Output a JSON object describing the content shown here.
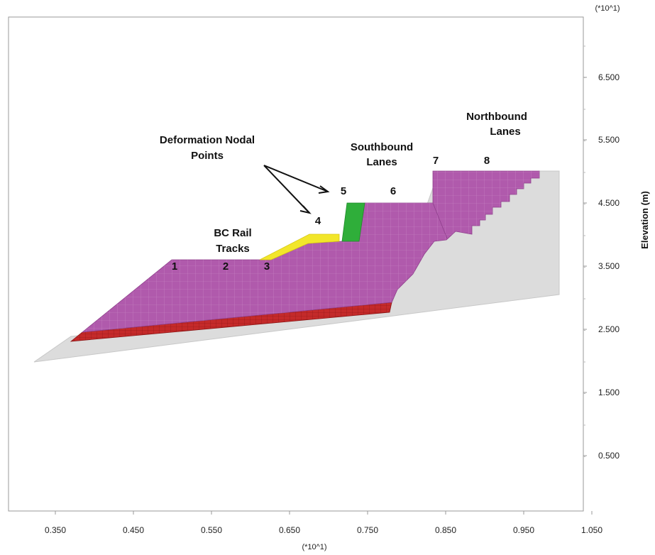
{
  "axes": {
    "x_ticks": [
      "0.350",
      "0.450",
      "0.550",
      "0.650",
      "0.750",
      "0.850",
      "0.950",
      "1.050"
    ],
    "y_ticks": [
      "6.500",
      "5.500",
      "4.500",
      "3.500",
      "2.500",
      "1.500",
      "0.500"
    ],
    "x_multiplier": "(*10^1)",
    "y_multiplier": "(*10^1)",
    "y_label": "Elevation (m)"
  },
  "annotations": {
    "deformation_line1": "Deformation Nodal",
    "deformation_line2": "Points",
    "bc_rail_line1": "BC Rail",
    "bc_rail_line2": "Tracks",
    "southbound_line1": "Southbound",
    "southbound_line2": "Lanes",
    "northbound_line1": "Northbound",
    "northbound_line2": "Lanes"
  },
  "nodal_points": [
    "1",
    "2",
    "3",
    "4",
    "5",
    "6",
    "7",
    "8"
  ],
  "colors": {
    "embankment": "#b05aac",
    "base_layer": "#c42a2a",
    "rail_ballast": "#f2e62a",
    "drain": "#2fae3a",
    "foundation": "#dcdcdc",
    "frame": "#999999"
  }
}
